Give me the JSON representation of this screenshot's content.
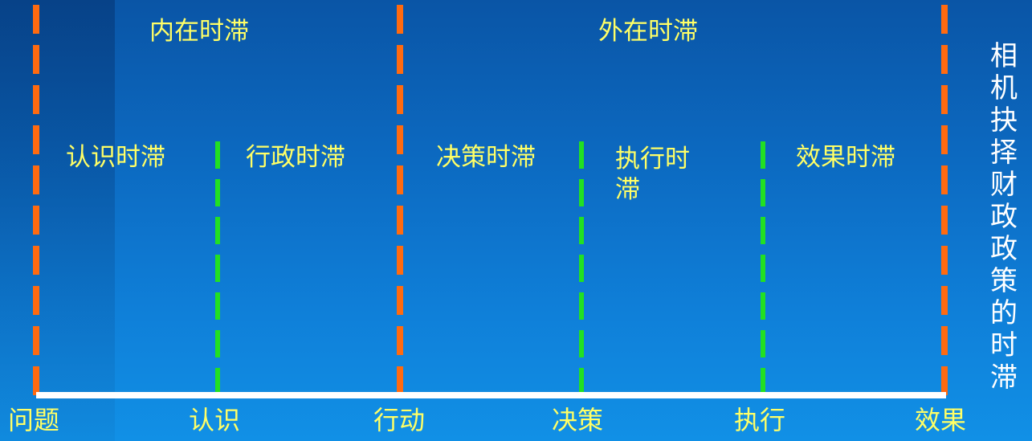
{
  "top_labels": {
    "internal": "内在时滞",
    "external": "外在时滞"
  },
  "segments": {
    "recognition": "认识时滞",
    "administrative": "行政时滞",
    "decision": "决策时滞",
    "execution": "执行时滞",
    "effect": "效果时滞"
  },
  "axis_labels": {
    "problem": "问题",
    "recognize": "认识",
    "action": "行动",
    "decide": "决策",
    "execute": "执行",
    "effect": "效果"
  },
  "side_title": "相机抉择财政政策的时滞",
  "colors": {
    "background": "#0c69c0",
    "major_divider": "#ff6a10",
    "minor_divider": "#22e022",
    "label_text": "#ffff66",
    "axis": "#ffffff"
  }
}
